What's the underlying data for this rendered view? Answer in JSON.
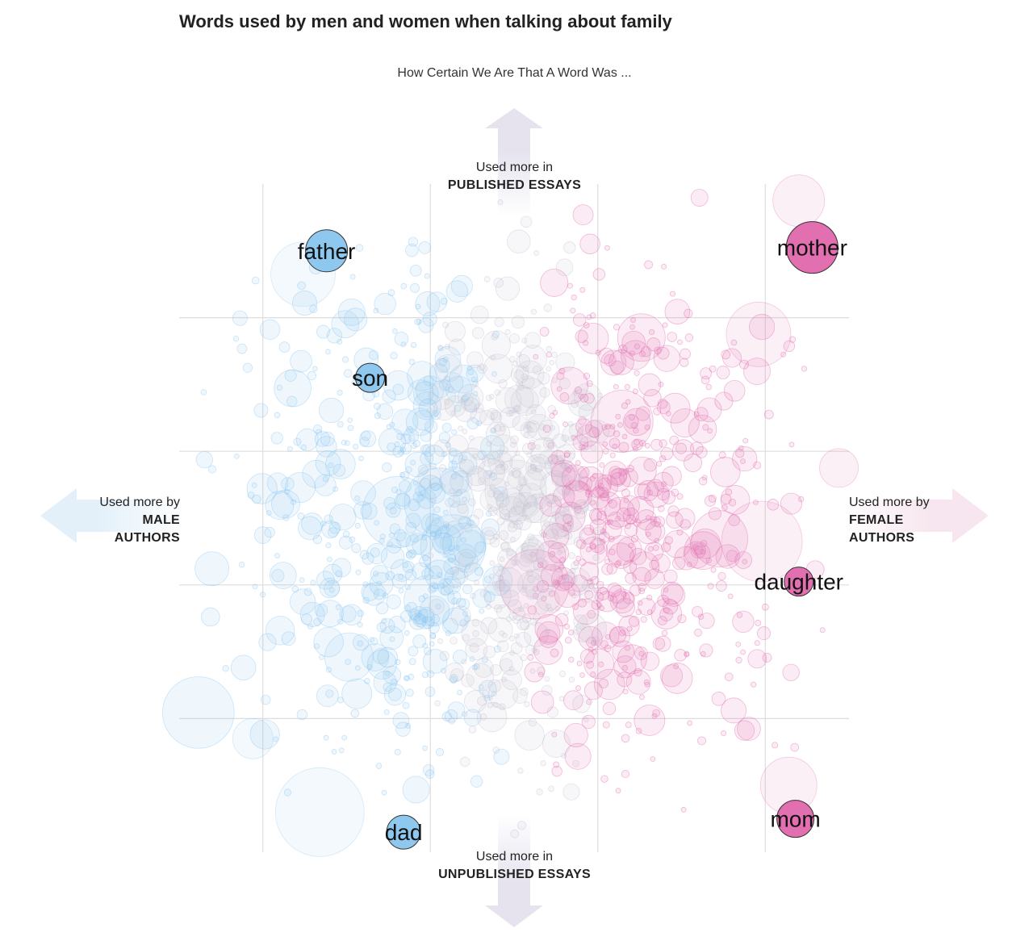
{
  "title": "Words used by men and women when talking about family",
  "subtitle": "How Certain We Are That A Word Was ...",
  "axes": {
    "top": {
      "line1": "Used more in",
      "line2": "PUBLISHED ESSAYS"
    },
    "bottom": {
      "line1": "Used more in",
      "line2": "UNPUBLISHED ESSAYS"
    },
    "left": {
      "line1": "Used more by",
      "line2": "MALE",
      "line3": "AUTHORS"
    },
    "right": {
      "line1": "Used more by",
      "line2": "FEMALE",
      "line3": "AUTHORS"
    }
  },
  "colors": {
    "male": "#8ec8ef",
    "female": "#e26fb0",
    "neutral": "#c8c4d4",
    "grid": "#dddddd",
    "arrow_v": "#e6e3ef",
    "arrow_male": "#e3f0fa",
    "arrow_female": "#f7e6ef"
  },
  "chart_data": {
    "type": "scatter",
    "title": "Words used by men and women when talking about family",
    "subtitle": "How Certain We Are That A Word Was ...",
    "x_axis": {
      "negative": "Used more by MALE AUTHORS",
      "positive": "Used more by FEMALE AUTHORS"
    },
    "y_axis": {
      "negative": "Used more in UNPUBLISHED ESSAYS",
      "positive": "Used more in PUBLISHED ESSAYS"
    },
    "xlim": [
      -1,
      1
    ],
    "ylim": [
      -1,
      1
    ],
    "grid": true,
    "highlighted": [
      {
        "word": "father",
        "x": -0.56,
        "y": 0.8,
        "group": "male",
        "size": 26
      },
      {
        "word": "son",
        "x": -0.43,
        "y": 0.42,
        "group": "male",
        "size": 18
      },
      {
        "word": "dad",
        "x": -0.33,
        "y": -0.94,
        "group": "male",
        "size": 21
      },
      {
        "word": "mother",
        "x": 0.89,
        "y": 0.81,
        "group": "female",
        "size": 32
      },
      {
        "word": "daughter",
        "x": 0.85,
        "y": -0.19,
        "group": "female",
        "size": 18
      },
      {
        "word": "mom",
        "x": 0.84,
        "y": -0.9,
        "group": "female",
        "size": 23
      }
    ]
  }
}
